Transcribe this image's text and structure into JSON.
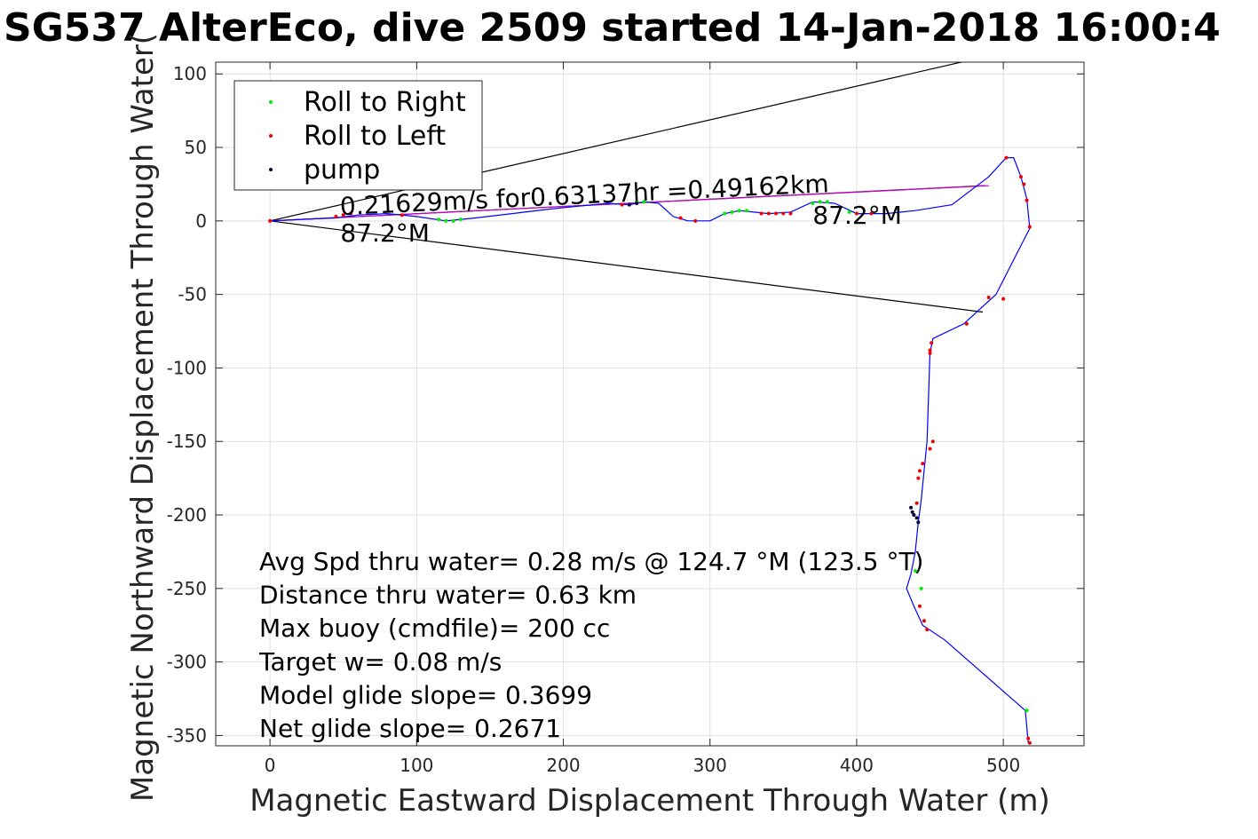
{
  "chart_data": {
    "type": "line",
    "title": "SG537 AlterEco, dive 2509 started 14-Jan-2018 16:00:4",
    "xlabel": "Magnetic Eastward Displacement Through Water (m)",
    "ylabel": "Magnetic Northward Displacement Through Water(",
    "xlim": [
      -37,
      555
    ],
    "ylim": [
      -357,
      108
    ],
    "xticks": [
      0,
      100,
      200,
      300,
      400,
      500
    ],
    "yticks": [
      100,
      50,
      0,
      -50,
      -100,
      -150,
      -200,
      -250,
      -300,
      -350
    ],
    "grid": true,
    "legend_position": "top-left",
    "legend": [
      {
        "label": "Roll to Right",
        "color": "#00ee00"
      },
      {
        "label": "Roll to Left",
        "color": "#ee0000"
      },
      {
        "label": "pump",
        "color": "#000033"
      }
    ],
    "track": {
      "color": "#0000ff",
      "x": [
        0,
        20,
        45,
        60,
        80,
        100,
        120,
        140,
        165,
        190,
        210,
        230,
        245,
        255,
        265,
        275,
        285,
        300,
        310,
        320,
        330,
        340,
        355,
        370,
        385,
        400,
        420,
        440,
        465,
        490,
        502,
        507,
        512,
        516,
        518,
        495,
        473,
        452,
        450,
        448,
        446,
        444,
        442,
        440,
        437,
        434,
        439,
        445,
        460,
        515,
        517
      ],
      "y": [
        0,
        1,
        2,
        4,
        5,
        3,
        0,
        2,
        5,
        8,
        10,
        12,
        11,
        13,
        12,
        3,
        0,
        0,
        5,
        7,
        6,
        5,
        6,
        13,
        12,
        5,
        5,
        7,
        11,
        30,
        43,
        43,
        30,
        15,
        -5,
        -50,
        -70,
        -80,
        -90,
        -150,
        -170,
        -190,
        -205,
        -225,
        -240,
        -250,
        -262,
        -275,
        -285,
        -333,
        -355
      ]
    },
    "dots_right": {
      "color": "#00ee00",
      "x": [
        115,
        120,
        125,
        130,
        250,
        255,
        310,
        315,
        320,
        325,
        370,
        375,
        380,
        395,
        440,
        444,
        516
      ],
      "y": [
        1,
        0,
        0,
        1,
        13,
        13,
        5,
        6,
        7,
        7,
        12,
        13,
        13,
        6,
        -238,
        -250,
        -333
      ]
    },
    "dots_left": {
      "color": "#ee0000",
      "x": [
        0,
        45,
        50,
        55,
        90,
        240,
        280,
        290,
        335,
        340,
        345,
        350,
        355,
        400,
        410,
        502,
        512,
        514,
        516,
        518,
        500,
        490,
        475,
        451,
        450,
        450,
        452,
        450,
        445,
        443,
        442,
        441,
        443,
        446,
        448,
        517,
        518
      ],
      "y": [
        0,
        3,
        4,
        5,
        4,
        11,
        2,
        0,
        5,
        5,
        5,
        5,
        5,
        5,
        5,
        43,
        30,
        25,
        14,
        -4,
        -53,
        -52,
        -70,
        -83,
        -88,
        -90,
        -150,
        -155,
        -165,
        -170,
        -175,
        -192,
        -262,
        -272,
        -278,
        -352,
        -355
      ]
    },
    "dots_pump": {
      "color": "#000033",
      "x": [
        245,
        250,
        437,
        438,
        439,
        441,
        442
      ],
      "y": [
        11,
        12,
        -195,
        -198,
        -200,
        -202,
        -205
      ]
    },
    "lines": [
      {
        "name": "upper-cone",
        "color": "#000000",
        "x": [
          0,
          480
        ],
        "y": [
          0,
          110
        ]
      },
      {
        "name": "lower-cone",
        "color": "#000000",
        "x": [
          0,
          486
        ],
        "y": [
          0,
          -62
        ]
      },
      {
        "name": "mean-heading",
        "color": "#000000",
        "x": [
          0,
          487
        ],
        "y": [
          0,
          24
        ]
      },
      {
        "name": "fit-line",
        "color": "#cc00cc",
        "x": [
          0,
          490
        ],
        "y": [
          0,
          24
        ]
      }
    ],
    "annotations": [
      {
        "text": "0.21629m/s for0.63137hr =0.49162km",
        "x": 48,
        "y": 4,
        "rotate": -2.7
      },
      {
        "text": "87.2°M",
        "x": 48,
        "y": -14,
        "rotate": 0
      },
      {
        "text": "87.2°M",
        "x": 370,
        "y": -2,
        "rotate": 0
      }
    ],
    "stats": [
      "Avg Spd thru water=  0.28 m/s @ 124.7 °M (123.5 °T)",
      "Distance thru water=  0.63 km",
      "Max buoy (cmdfile)= 200 cc",
      "Target w= 0.08 m/s",
      "Model glide slope= 0.3699",
      "Net glide slope= 0.2671"
    ]
  }
}
